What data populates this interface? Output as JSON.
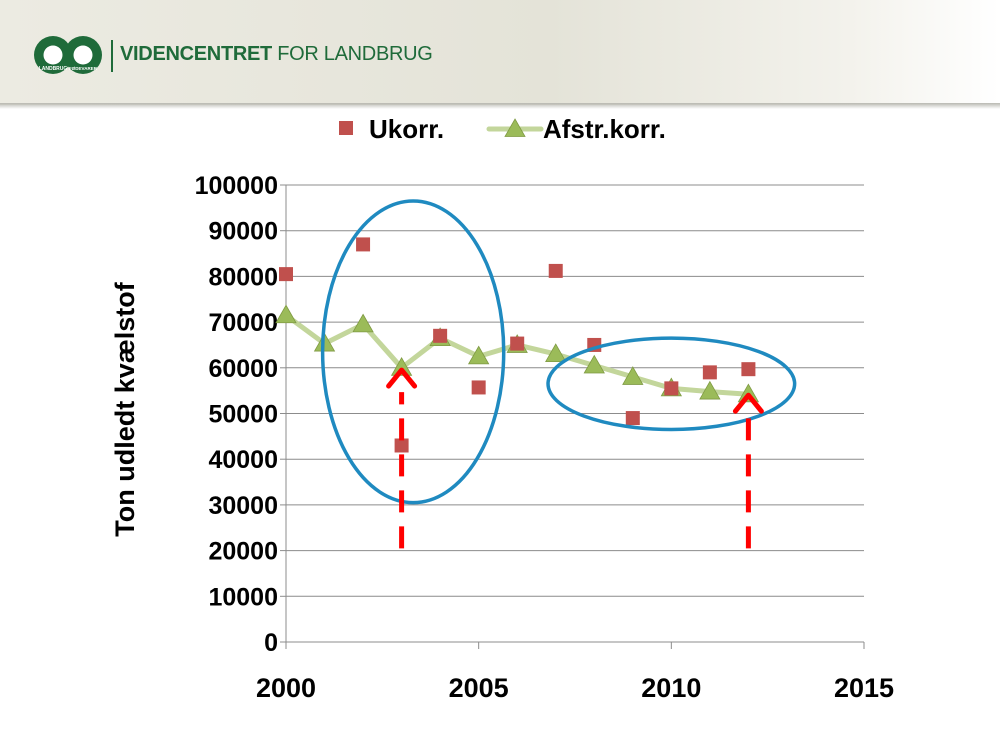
{
  "header": {
    "org_name_bold": "VIDENCENTRET",
    "org_name_rest": " FOR LANDBRUG",
    "logo_left_text": "LANDBRUG",
    "logo_right_text": "FØDEVARER",
    "logo_color": "#1f6b3a"
  },
  "chart_data": {
    "type": "scatter",
    "title": "",
    "xlabel": "",
    "ylabel": "Ton udledt kvælstof",
    "xlim": [
      2000,
      2015
    ],
    "ylim": [
      0,
      100000
    ],
    "x_ticks": [
      "2000",
      "2005",
      "2010",
      "2015"
    ],
    "y_ticks": [
      "0",
      "10000",
      "20000",
      "30000",
      "40000",
      "50000",
      "60000",
      "70000",
      "80000",
      "90000",
      "100000"
    ],
    "grid": "horizontal",
    "legend_position": "top",
    "series": [
      {
        "name": "Ukorr.",
        "marker": "square",
        "line": false,
        "color": "#c0504d",
        "x": [
          2000,
          2002,
          2003,
          2004,
          2005,
          2006,
          2007,
          2008,
          2009,
          2010,
          2011,
          2012
        ],
        "y": [
          80500,
          87000,
          43000,
          67000,
          55700,
          65300,
          81200,
          65000,
          49000,
          55500,
          59000,
          59700
        ]
      },
      {
        "name": "Afstr.korr.",
        "marker": "triangle",
        "line": true,
        "color": "#9bbb59",
        "line_color": "#c3d69b",
        "x": [
          2000,
          2001,
          2002,
          2003,
          2004,
          2005,
          2006,
          2007,
          2008,
          2009,
          2010,
          2011,
          2012
        ],
        "y": [
          71500,
          65300,
          69500,
          60000,
          66500,
          62500,
          65000,
          63000,
          60500,
          58000,
          55500,
          54800,
          54200
        ]
      }
    ],
    "annotations": [
      {
        "type": "ellipse",
        "color": "#1f8ac0",
        "x_center": 2003.3,
        "y_center": 63500,
        "x_radius": 2.35,
        "y_radius": 33000
      },
      {
        "type": "ellipse",
        "color": "#1f8ac0",
        "x_center": 2010.0,
        "y_center": 56500,
        "x_radius": 3.2,
        "y_radius": 10000
      },
      {
        "type": "dashed-arrow",
        "color": "#ff0000",
        "x": 2003,
        "y_from": 20500,
        "y_to": 59500
      },
      {
        "type": "dashed-arrow",
        "color": "#ff0000",
        "x": 2012,
        "y_from": 20500,
        "y_to": 54000
      }
    ]
  }
}
